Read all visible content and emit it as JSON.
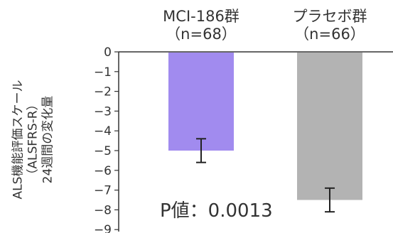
{
  "chart_data": {
    "type": "bar",
    "categories": [
      {
        "name": "MCI-186群",
        "n_label": "（n=68）"
      },
      {
        "name": "プラセボ群",
        "n_label": "（n=66）"
      }
    ],
    "values": [
      -5.0,
      -7.5
    ],
    "error_bars": [
      {
        "lower": -5.6,
        "upper": -4.4
      },
      {
        "lower": -8.1,
        "upper": -6.9
      }
    ],
    "ylim": [
      -9,
      0
    ],
    "yticks": [
      0,
      -1,
      -2,
      -3,
      -4,
      -5,
      -6,
      -7,
      -8,
      -9
    ],
    "ylabel_lines": [
      "ALS機能評価スケール",
      "（ALSFRS-R）",
      "24週間の変化量"
    ],
    "annotation": "P値：0.0013",
    "colors": [
      "#a18bef",
      "#b3b3b3"
    ],
    "grid": false
  }
}
